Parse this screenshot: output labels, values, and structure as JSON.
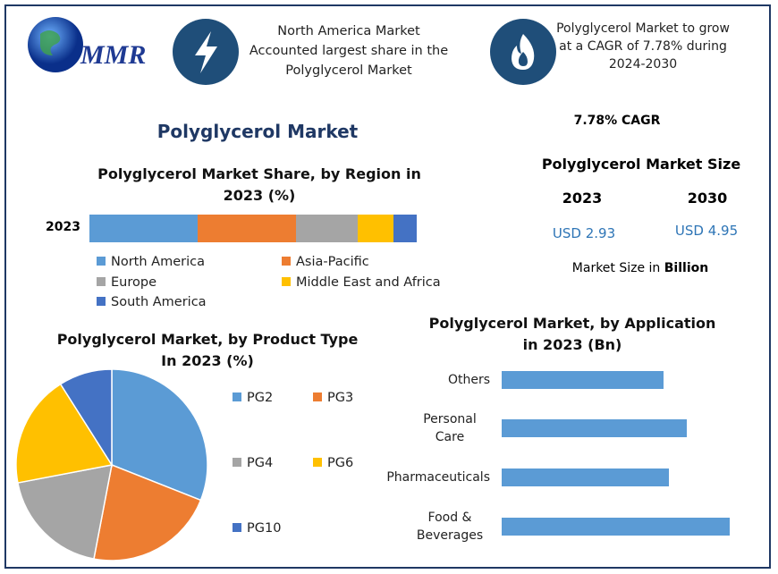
{
  "logo": "MMR",
  "header": {
    "left": "North America Market Accounted largest share in the Polyglycerol Market",
    "right": "Polyglycerol Market to grow at a CAGR of 7.78% during 2024-2030"
  },
  "title": "Polyglycerol Market",
  "market_size": {
    "cagr": "7.78% CAGR",
    "title": "Polyglycerol Market Size",
    "years": [
      "2023",
      "2030"
    ],
    "amounts": [
      "USD 2.93",
      "USD 4.95"
    ],
    "note": "Market Size in",
    "unit": "Billion"
  },
  "chart_data": [
    {
      "type": "stacked-bar",
      "title": "Polyglycerol Market Share, by Region in 2023 (%)",
      "categories": [
        "2023"
      ],
      "series": [
        {
          "name": "North America",
          "color": "#5b9bd5",
          "values": [
            33
          ]
        },
        {
          "name": "Asia-Pacific",
          "color": "#ed7d31",
          "values": [
            30
          ]
        },
        {
          "name": "Europe",
          "color": "#a5a5a5",
          "values": [
            19
          ]
        },
        {
          "name": "Middle East and Africa",
          "color": "#ffc000",
          "values": [
            11
          ]
        },
        {
          "name": "South America",
          "color": "#4472c4",
          "values": [
            7
          ]
        }
      ]
    },
    {
      "type": "pie",
      "title": "Polyglycerol Market, by Product Type In 2023 (%)",
      "categories": [
        "PG2",
        "PG3",
        "PG4",
        "PG6",
        "PG10"
      ],
      "values": [
        31,
        22,
        19,
        19,
        9
      ],
      "colors": [
        "#5b9bd5",
        "#ed7d31",
        "#a5a5a5",
        "#ffc000",
        "#4472c4"
      ]
    },
    {
      "type": "bar",
      "title": "Polyglycerol Market, by Application in 2023 (Bn)",
      "categories": [
        "Others",
        "Personal Care",
        "Pharmaceuticals",
        "Food & Beverages"
      ],
      "values": [
        0.64,
        0.73,
        0.66,
        0.9
      ],
      "color": "#5b9bd5"
    }
  ]
}
